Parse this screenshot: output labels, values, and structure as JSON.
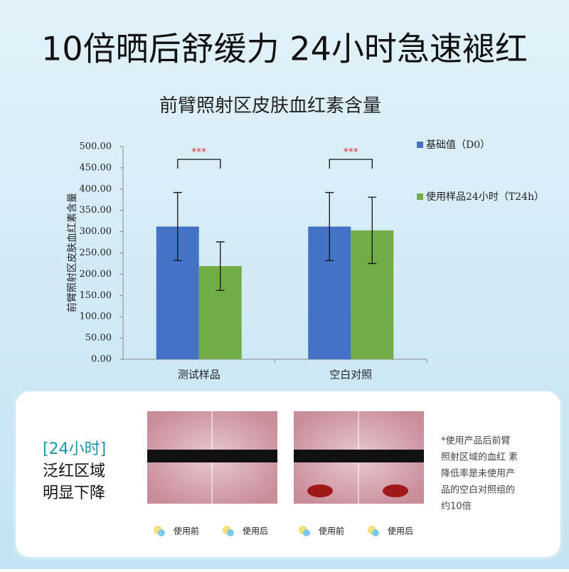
{
  "headline": "10倍晒后舒缓力 24小时急速褪红",
  "chart_data": {
    "type": "bar",
    "title": "前臂照射区皮肤血红素含量",
    "y_label": "前臂照射区皮肤血红素含量",
    "categories": [
      "测试样品",
      "空白对照"
    ],
    "series": [
      {
        "name": "基础值（D0）",
        "color": "#4472c4",
        "values": [
          312,
          312
        ],
        "errors": [
          80,
          80
        ]
      },
      {
        "name": "使用样品24小时（T24h）",
        "color": "#70ad47",
        "values": [
          219,
          303
        ],
        "errors": [
          57,
          78
        ]
      }
    ],
    "significance": [
      "***",
      "***"
    ],
    "ylim": [
      0,
      500
    ],
    "yticks": [
      {
        "value": 0,
        "label": "0.00"
      },
      {
        "value": 50,
        "label": "50.00"
      },
      {
        "value": 100,
        "label": "100.00"
      },
      {
        "value": 150,
        "label": "150.00"
      },
      {
        "value": 200,
        "label": "200.00"
      },
      {
        "value": 250,
        "label": "250.00"
      },
      {
        "value": 300,
        "label": "300.00"
      },
      {
        "value": 350,
        "label": "350.00"
      },
      {
        "value": 400,
        "label": "400.00"
      },
      {
        "value": 450,
        "label": "450.00"
      },
      {
        "value": 500,
        "label": "500.00"
      }
    ],
    "legend": "right"
  },
  "panel": {
    "tag": "[24小时]",
    "lines": [
      "泛红区域",
      "明显下降"
    ],
    "captions": [
      "使用前",
      "使用后",
      "使用前",
      "使用后"
    ],
    "note": [
      "*使用产品后前臂",
      "照射区域的血红 素",
      "降低率是未使用产",
      "品的空白对照组的",
      "约10倍"
    ]
  }
}
